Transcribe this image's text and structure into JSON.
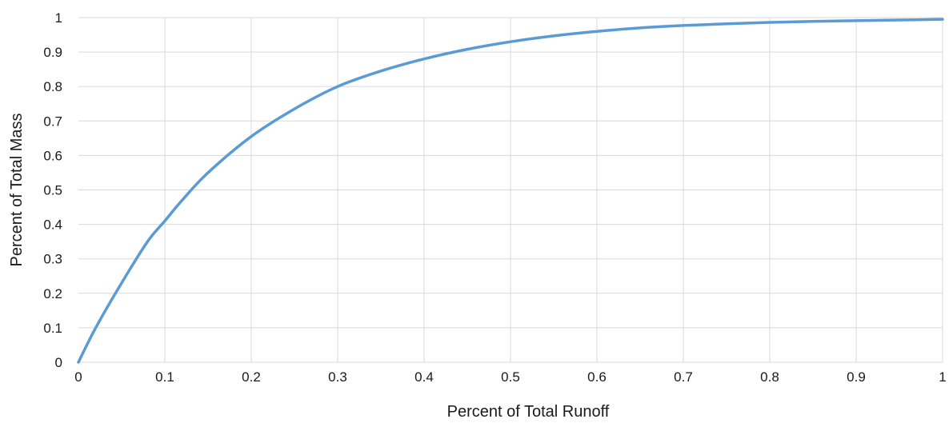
{
  "chart_data": {
    "type": "line",
    "title": "",
    "xlabel": "Percent of Total Runoff",
    "ylabel": "Percent of Total Mass",
    "xlim": [
      0,
      1
    ],
    "ylim": [
      0,
      1
    ],
    "grid": true,
    "legend": "none",
    "x_ticks": [
      "0",
      "0.1",
      "0.2",
      "0.3",
      "0.4",
      "0.5",
      "0.6",
      "0.7",
      "0.8",
      "0.9",
      "1"
    ],
    "y_ticks": [
      "0",
      "0.1",
      "0.2",
      "0.3",
      "0.4",
      "0.5",
      "0.6",
      "0.7",
      "0.8",
      "0.9",
      "1"
    ],
    "series": [
      {
        "color": "#5b9bd5",
        "x": [
          0,
          0.02,
          0.05,
          0.08,
          0.1,
          0.12,
          0.15,
          0.2,
          0.25,
          0.3,
          0.35,
          0.4,
          0.45,
          0.5,
          0.55,
          0.6,
          0.65,
          0.7,
          0.75,
          0.8,
          0.85,
          0.9,
          0.95,
          1.0
        ],
        "y": [
          0,
          0.1,
          0.23,
          0.35,
          0.41,
          0.47,
          0.55,
          0.655,
          0.735,
          0.8,
          0.845,
          0.88,
          0.908,
          0.93,
          0.947,
          0.96,
          0.97,
          0.977,
          0.982,
          0.986,
          0.989,
          0.991,
          0.993,
          0.995
        ]
      }
    ]
  }
}
